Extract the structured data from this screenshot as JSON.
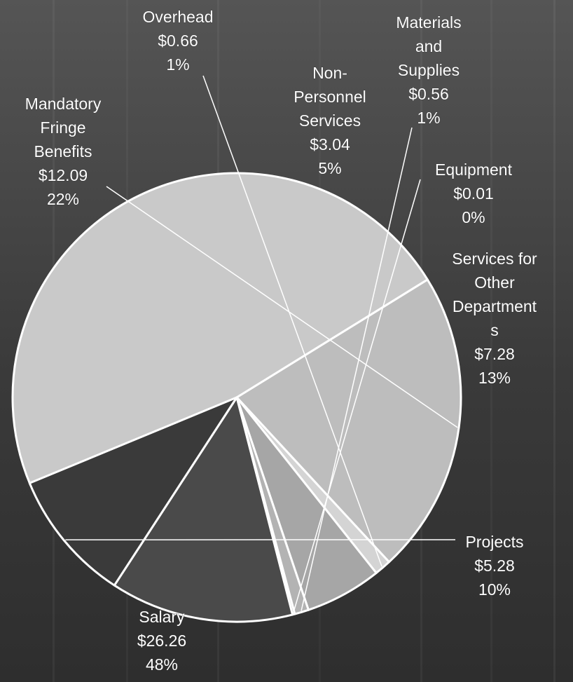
{
  "chart_data": {
    "type": "pie",
    "title": "",
    "unit_prefix": "$",
    "slices": [
      {
        "name": "Salary",
        "value": 26.26,
        "percent": "48%",
        "color": "#c9c9c9"
      },
      {
        "name": "Mandatory Fringe Benefits",
        "value": 12.09,
        "percent": "22%",
        "color": "#bdbdbd"
      },
      {
        "name": "Overhead",
        "value": 0.66,
        "percent": "1%",
        "color": "#d4d4d4"
      },
      {
        "name": "Non-Personnel Services",
        "value": 3.04,
        "percent": "5%",
        "color": "#a6a6a6"
      },
      {
        "name": "Materials and Supplies",
        "value": 0.56,
        "percent": "1%",
        "color": "#b3b3b3"
      },
      {
        "name": "Equipment",
        "value": 0.01,
        "percent": "0%",
        "color": "#8c8c8c"
      },
      {
        "name": "Services for Other Departments",
        "value": 7.28,
        "percent": "13%",
        "color": "#4a4a4a"
      },
      {
        "name": "Projects",
        "value": 5.28,
        "percent": "10%",
        "color": "#3a3a3a"
      }
    ]
  },
  "labels": [
    {
      "lines": [
        "Salary",
        "$26.26",
        "48%"
      ]
    },
    {
      "lines": [
        "Mandatory",
        "Fringe",
        "Benefits",
        "$12.09",
        "22%"
      ]
    },
    {
      "lines": [
        "Overhead",
        "$0.66",
        "1%"
      ]
    },
    {
      "lines": [
        "Non-",
        "Personnel",
        "Services",
        "$3.04",
        "5%"
      ]
    },
    {
      "lines": [
        "Materials",
        "and",
        "Supplies",
        "$0.56",
        "1%"
      ]
    },
    {
      "lines": [
        "Equipment",
        "$0.01",
        "0%"
      ]
    },
    {
      "lines": [
        "Services for",
        "Other",
        "Department",
        "s",
        "$7.28",
        "13%"
      ]
    },
    {
      "lines": [
        "Projects",
        "$5.28",
        "10%"
      ]
    }
  ],
  "colors": {
    "background": "#3d3d3d",
    "slice_border": "#ffffff",
    "label_text": "#ffffff"
  }
}
